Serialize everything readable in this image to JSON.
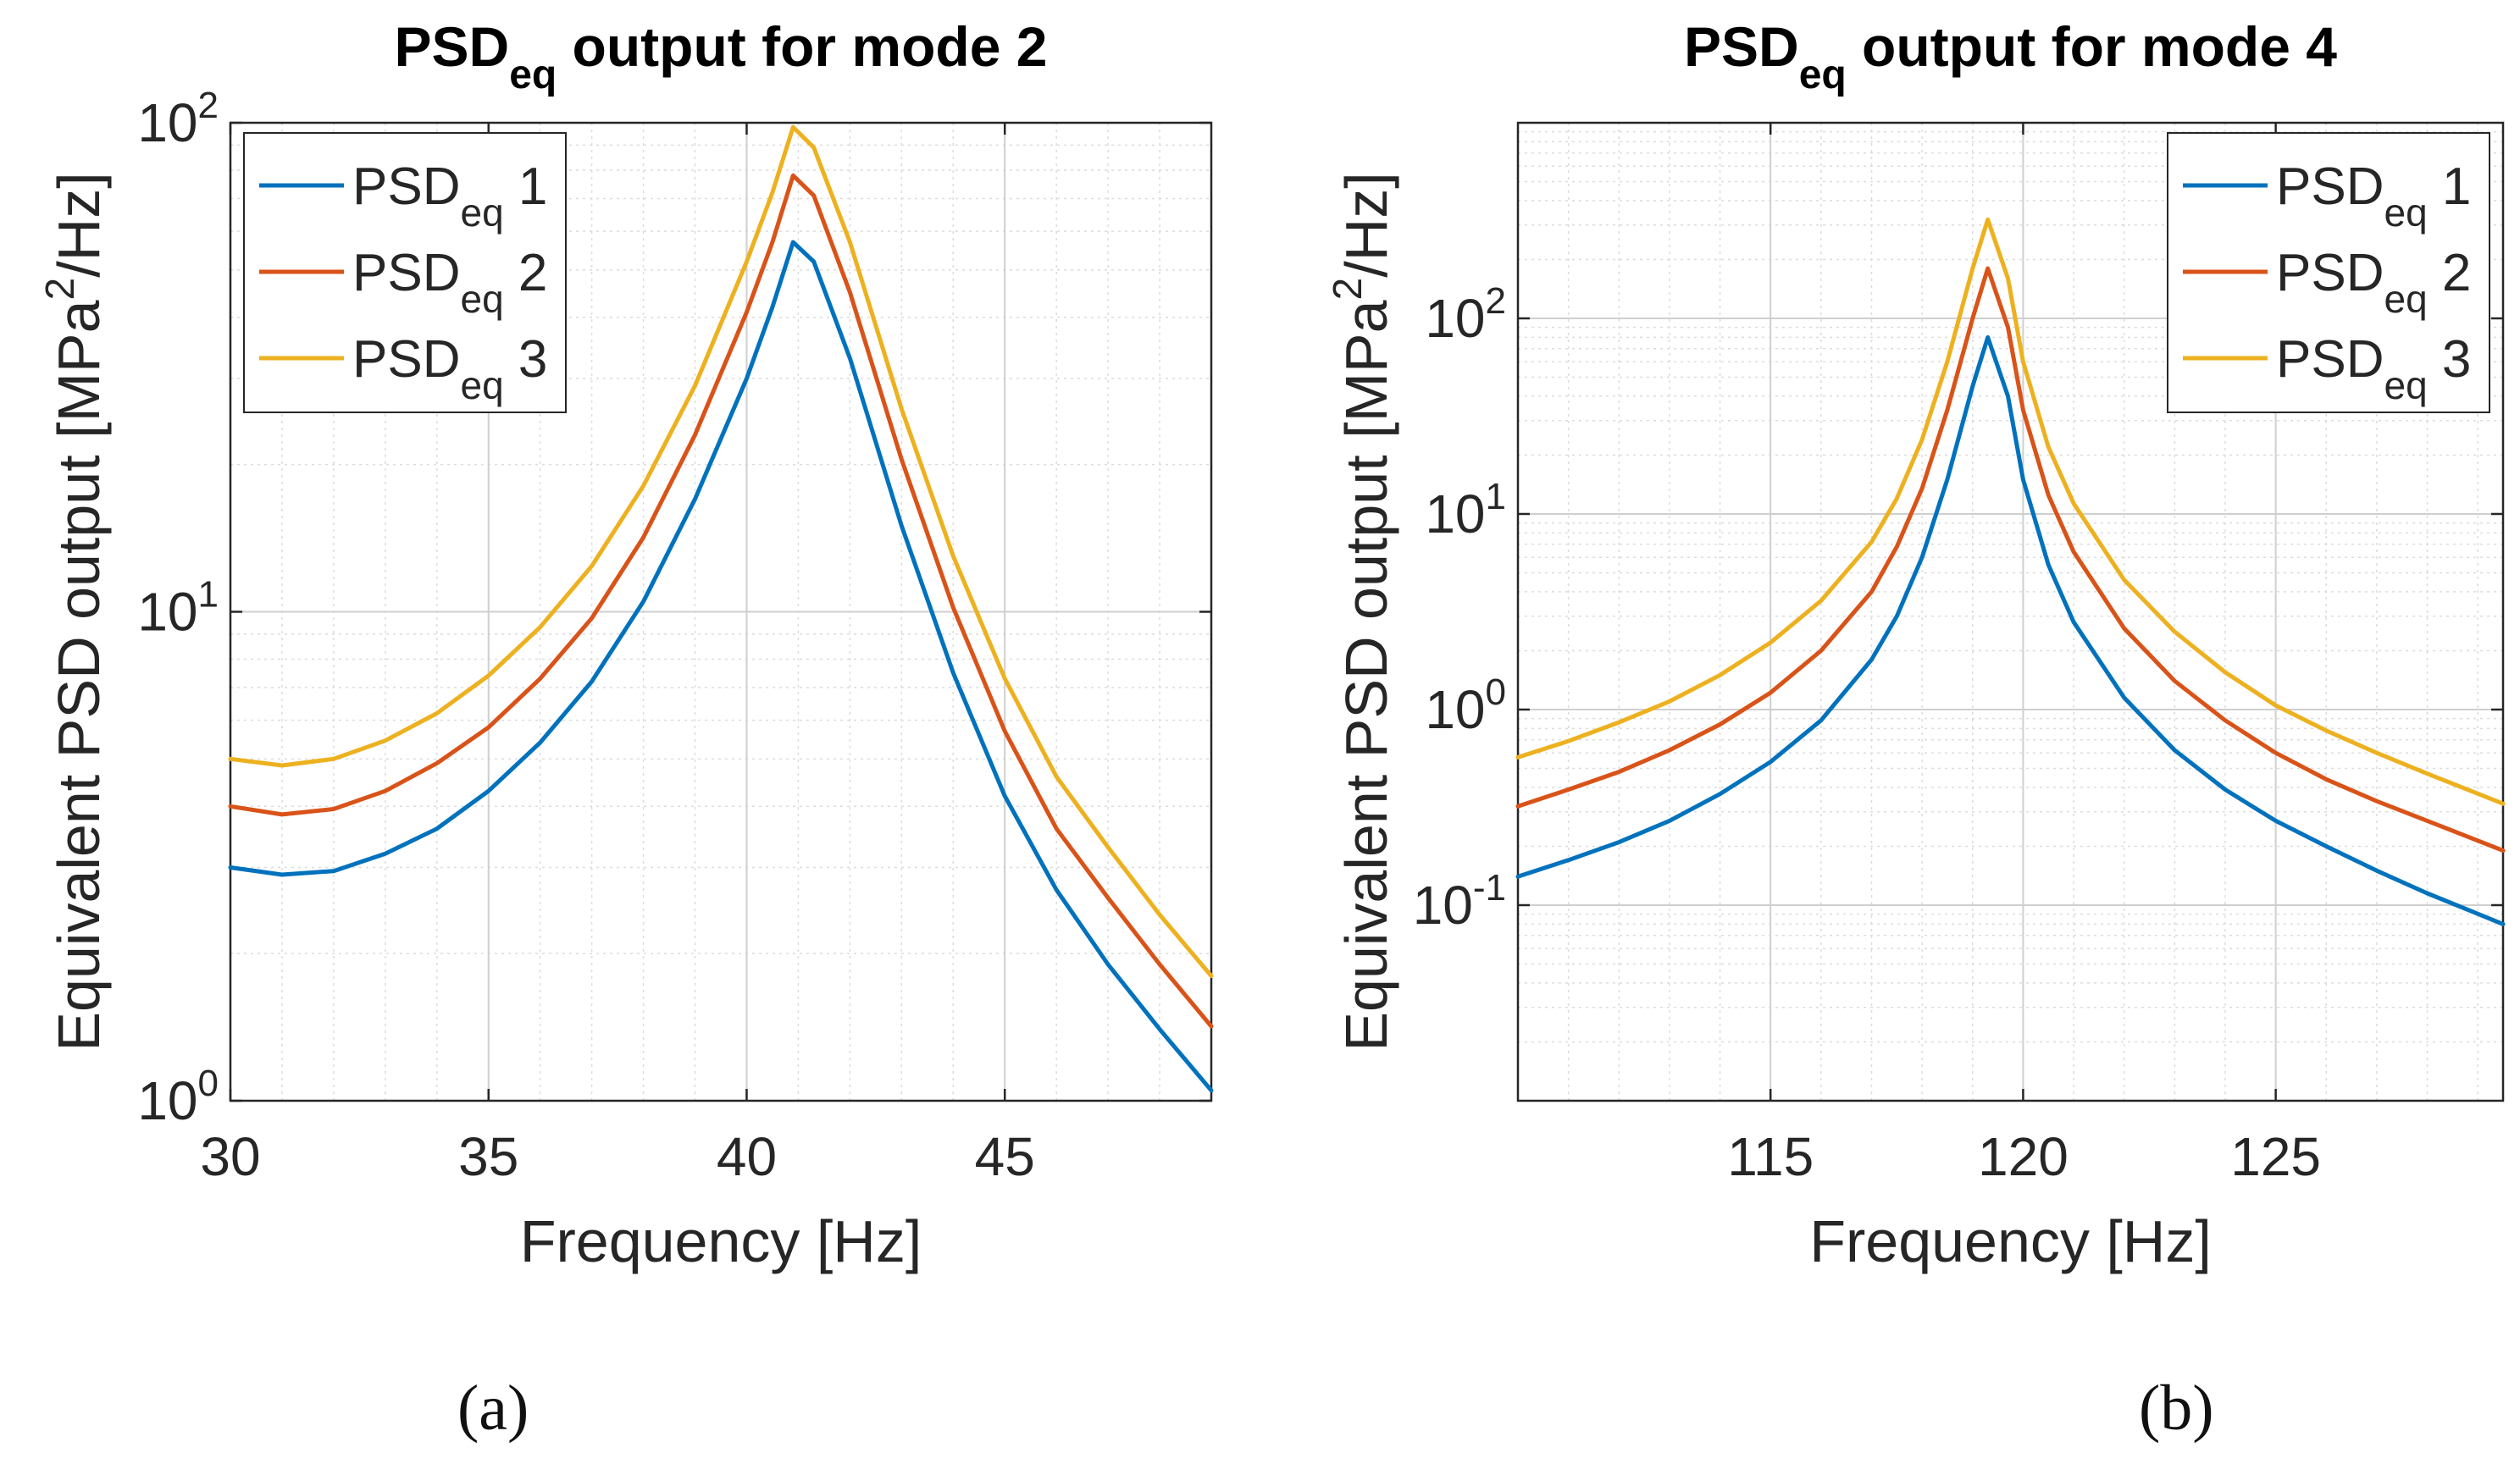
{
  "chart_data": [
    {
      "type": "line",
      "title": {
        "main": "PSD",
        "sub": "eq",
        "rest": " output for mode 2"
      },
      "xlabel": "Frequency [Hz]",
      "ylabel": {
        "pre": "Equivalent PSD output [MPa",
        "sup": "2",
        "post": "/Hz]"
      },
      "xscale": "linear",
      "yscale": "log",
      "xlim": [
        30,
        49
      ],
      "ylim": [
        1,
        100
      ],
      "xticks": [
        30,
        35,
        40,
        45
      ],
      "yticks": [
        {
          "base": "10",
          "exp": "0"
        },
        {
          "base": "10",
          "exp": "1"
        },
        {
          "base": "10",
          "exp": "2"
        }
      ],
      "grid": true,
      "legend_position": "top-left",
      "subcaption": "(a)",
      "series": [
        {
          "name": {
            "main": "PSD",
            "sub": "eq",
            "rest": " 1"
          },
          "color": "#0072BD",
          "x": [
            30,
            31,
            32,
            33,
            34,
            35,
            36,
            37,
            38,
            39,
            40,
            40.5,
            40.9,
            41.3,
            42,
            43,
            44,
            45,
            46,
            47,
            48,
            49
          ],
          "y": [
            3.0,
            2.9,
            2.95,
            3.2,
            3.6,
            4.3,
            5.4,
            7.2,
            10.5,
            17,
            30,
            42,
            57,
            52,
            33,
            15,
            7.5,
            4.2,
            2.7,
            1.9,
            1.4,
            1.05
          ]
        },
        {
          "name": {
            "main": "PSD",
            "sub": "eq",
            "rest": " 2"
          },
          "color": "#D95319",
          "x": [
            30,
            31,
            32,
            33,
            34,
            35,
            36,
            37,
            38,
            39,
            40,
            40.5,
            40.9,
            41.3,
            42,
            43,
            44,
            45,
            46,
            47,
            48,
            49
          ],
          "y": [
            4.0,
            3.85,
            3.95,
            4.3,
            4.9,
            5.8,
            7.3,
            9.7,
            14.2,
            23,
            41,
            57,
            78,
            71,
            45,
            20.5,
            10.2,
            5.7,
            3.6,
            2.6,
            1.9,
            1.42
          ]
        },
        {
          "name": {
            "main": "PSD",
            "sub": "eq",
            "rest": " 3"
          },
          "color": "#EDB120",
          "x": [
            30,
            31,
            32,
            33,
            34,
            35,
            36,
            37,
            38,
            39,
            40,
            40.5,
            40.9,
            41.3,
            42,
            43,
            44,
            45,
            46,
            47,
            48,
            49
          ],
          "y": [
            5.0,
            4.85,
            5.0,
            5.45,
            6.2,
            7.4,
            9.3,
            12.4,
            18.1,
            29,
            52,
            72,
            98,
            89,
            57,
            26,
            13,
            7.3,
            4.6,
            3.3,
            2.4,
            1.8
          ]
        }
      ]
    },
    {
      "type": "line",
      "title": {
        "main": "PSD",
        "sub": "eq",
        "rest": " output for mode 4"
      },
      "xlabel": "Frequency [Hz]",
      "ylabel": {
        "pre": "Equivalent PSD output [MPa",
        "sup": "2",
        "post": "/Hz]"
      },
      "xscale": "linear",
      "yscale": "log",
      "xlim": [
        110,
        129.5
      ],
      "ylim": [
        0.01,
        1000
      ],
      "xticks": [
        115,
        120,
        125
      ],
      "yticks": [
        {
          "base": "10",
          "exp": "-1"
        },
        {
          "base": "10",
          "exp": "0"
        },
        {
          "base": "10",
          "exp": "1"
        },
        {
          "base": "10",
          "exp": "2"
        }
      ],
      "grid": true,
      "legend_position": "top-right",
      "subcaption": "(b)",
      "series": [
        {
          "name": {
            "main": "PSD",
            "sub": "eq",
            "rest": " 1"
          },
          "color": "#0072BD",
          "x": [
            110,
            111,
            112,
            113,
            114,
            115,
            116,
            117,
            117.5,
            118,
            118.5,
            119,
            119.3,
            119.7,
            120,
            120.5,
            121,
            122,
            123,
            124,
            125,
            126,
            127,
            128,
            129.5
          ],
          "y": [
            0.14,
            0.17,
            0.21,
            0.27,
            0.37,
            0.54,
            0.88,
            1.8,
            3.0,
            6.0,
            15,
            45,
            80,
            40,
            15,
            5.5,
            2.8,
            1.15,
            0.62,
            0.39,
            0.27,
            0.2,
            0.15,
            0.115,
            0.08
          ]
        },
        {
          "name": {
            "main": "PSD",
            "sub": "eq",
            "rest": " 2"
          },
          "color": "#D95319",
          "x": [
            110,
            111,
            112,
            113,
            114,
            115,
            116,
            117,
            117.5,
            118,
            118.5,
            119,
            119.3,
            119.7,
            120,
            120.5,
            121,
            122,
            123,
            124,
            125,
            126,
            127,
            128,
            129.5
          ],
          "y": [
            0.32,
            0.39,
            0.48,
            0.62,
            0.84,
            1.22,
            2.0,
            4.0,
            6.8,
            13.5,
            34,
            100,
            180,
            90,
            34,
            12.5,
            6.4,
            2.6,
            1.4,
            0.88,
            0.6,
            0.44,
            0.34,
            0.27,
            0.19
          ]
        },
        {
          "name": {
            "main": "PSD",
            "sub": "eq",
            "rest": " 3"
          },
          "color": "#EDB120",
          "x": [
            110,
            111,
            112,
            113,
            114,
            115,
            116,
            117,
            117.5,
            118,
            118.5,
            119,
            119.3,
            119.7,
            120,
            120.5,
            121,
            122,
            123,
            124,
            125,
            126,
            127,
            128,
            129.5
          ],
          "y": [
            0.57,
            0.69,
            0.86,
            1.1,
            1.5,
            2.2,
            3.6,
            7.2,
            12,
            24,
            60,
            180,
            320,
            160,
            60,
            22,
            11.3,
            4.6,
            2.5,
            1.55,
            1.05,
            0.78,
            0.6,
            0.47,
            0.33
          ]
        }
      ]
    }
  ]
}
